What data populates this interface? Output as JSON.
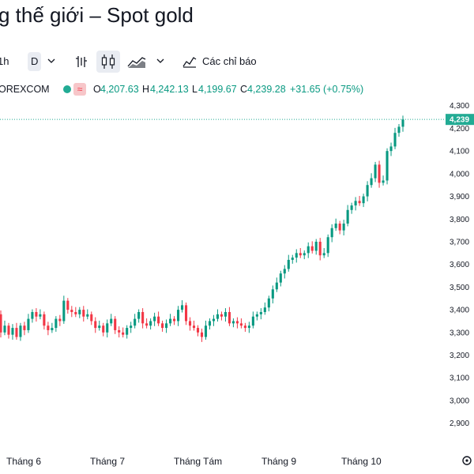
{
  "page": {
    "title": "g thế giới – Spot gold"
  },
  "toolbar": {
    "interval_1h": "1h",
    "interval_d": "D",
    "indicators_label": "Các chỉ báo",
    "icons": [
      "chevron-down-icon",
      "bar-chart-icon",
      "candlestick-icon",
      "area-chart-icon",
      "chevron-down-icon",
      "indicators-icon"
    ]
  },
  "symbol_bar": {
    "source": "OREXCOM",
    "open_label": "O",
    "open": "4,207.63",
    "high_label": "H",
    "high": "4,242.13",
    "low_label": "L",
    "low": "4,199.67",
    "close_label": "C",
    "close": "4,239.28",
    "change": "+31.65 (+0.75%)",
    "status_color": "#22ab94"
  },
  "colors": {
    "up": "#089981",
    "down": "#f23645",
    "last_price": "#22ab94"
  },
  "chart_data": {
    "type": "candlestick",
    "y_ticks": [
      "4,300",
      "4,200",
      "4,100",
      "4,000",
      "3,900",
      "3,800",
      "3,700",
      "3,600",
      "3,500",
      "3,400",
      "3,300",
      "3,200",
      "3,100",
      "3,000",
      "2,900"
    ],
    "y_range": [
      2850,
      4320
    ],
    "x_labels": [
      "Tháng 6",
      "Tháng 7",
      "Tháng Tám",
      "Tháng 9",
      "Tháng 10"
    ],
    "last_price": 4239.28,
    "last_price_label": "4,239",
    "closes": [
      3380,
      3300,
      3330,
      3290,
      3320,
      3280,
      3330,
      3310,
      3360,
      3390,
      3370,
      3380,
      3330,
      3310,
      3320,
      3360,
      3350,
      3440,
      3400,
      3390,
      3380,
      3400,
      3370,
      3380,
      3350,
      3320,
      3330,
      3300,
      3340,
      3360,
      3310,
      3300,
      3290,
      3320,
      3330,
      3360,
      3390,
      3340,
      3330,
      3350,
      3370,
      3340,
      3320,
      3340,
      3360,
      3350,
      3400,
      3420,
      3350,
      3330,
      3320,
      3300,
      3280,
      3330,
      3350,
      3360,
      3380,
      3370,
      3390,
      3340,
      3350,
      3340,
      3330,
      3320,
      3330,
      3370,
      3380,
      3390,
      3410,
      3450,
      3490,
      3520,
      3560,
      3580,
      3620,
      3630,
      3650,
      3640,
      3650,
      3680,
      3660,
      3700,
      3640,
      3650,
      3720,
      3760,
      3780,
      3750,
      3780,
      3840,
      3860,
      3880,
      3870,
      3900,
      3950,
      3980,
      4040,
      3960,
      3970,
      4100,
      4120,
      4180,
      4207,
      4239
    ]
  }
}
